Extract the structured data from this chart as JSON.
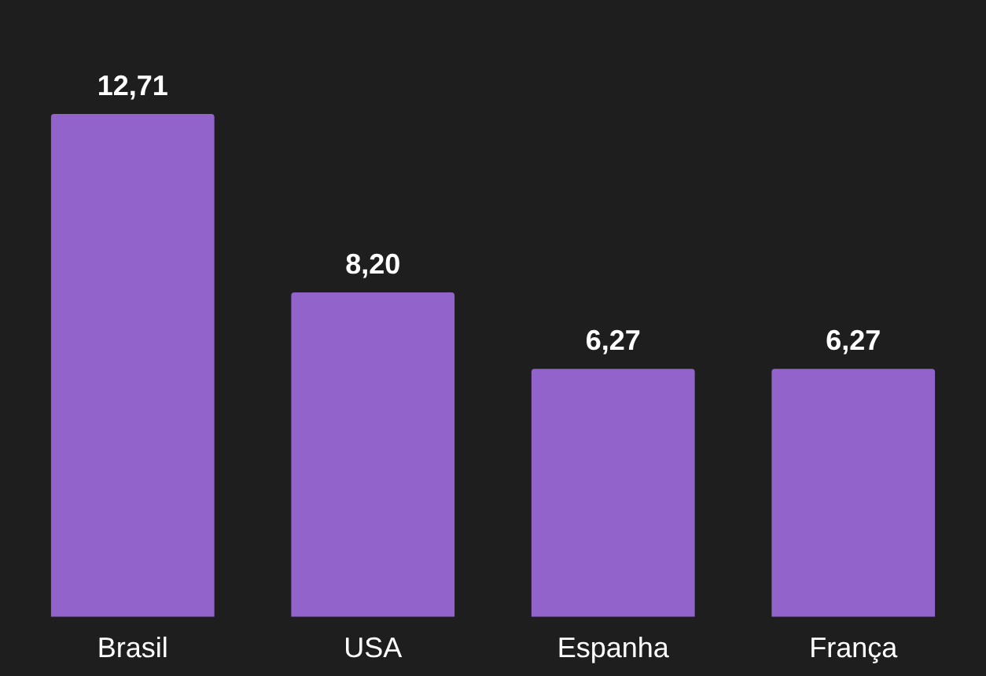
{
  "chart_data": {
    "type": "bar",
    "categories": [
      "Brasil",
      "USA",
      "Espanha",
      "França"
    ],
    "values": [
      12.71,
      8.2,
      6.27,
      6.27
    ],
    "value_labels": [
      "12,71",
      "8,20",
      "6,27",
      "6,27"
    ],
    "color": "#9163cb"
  }
}
